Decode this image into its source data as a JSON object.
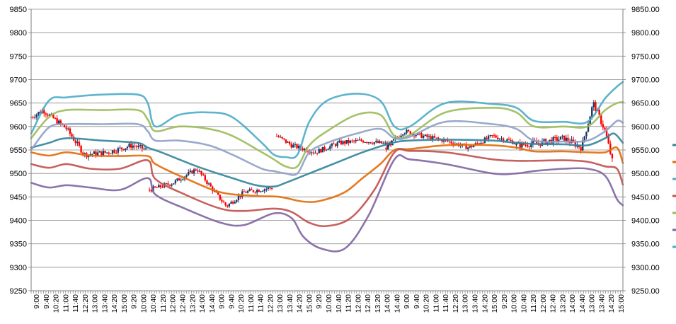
{
  "chart_data": {
    "type": "line",
    "title": "",
    "xlabel": "",
    "ylabel": "",
    "ylim": [
      9250,
      9850
    ],
    "grid": true,
    "legend_position": "right",
    "left_axis_ticks": [
      "9250",
      "9300",
      "9350",
      "9400",
      "9450",
      "9500",
      "9550",
      "9600",
      "9650",
      "9700",
      "9750",
      "9800",
      "9850"
    ],
    "right_axis_ticks": [
      "9250.00",
      "9300.00",
      "9350.00",
      "9400.00",
      "9450.00",
      "9500.00",
      "9550.00",
      "9600.00",
      "9650.00",
      "9700.00",
      "9750.00",
      "9800.00",
      "9850.00"
    ],
    "x_tick_labels": [
      "9:00",
      "9:40",
      "10:20",
      "11:00",
      "11:40",
      "12:20",
      "13:00",
      "13:40",
      "14:20",
      "15:00",
      "9:20",
      "10:00",
      "10:40",
      "11:20",
      "12:00",
      "12:40",
      "13:20",
      "14:00",
      "14:40",
      "9:00",
      "9:40",
      "10:20",
      "11:00",
      "11:40",
      "12:20",
      "13:00",
      "13:40",
      "14:20",
      "15:00",
      "9:20",
      "10:00",
      "10:40",
      "11:20",
      "12:00",
      "12:40",
      "13:20",
      "14:00",
      "14:40",
      "9:00",
      "9:40",
      "10:20",
      "11:00",
      "11:40",
      "12:20",
      "13:00",
      "13:40",
      "14:20",
      "15:00",
      "9:20",
      "10:00",
      "10:40",
      "11:20",
      "12:00",
      "12:40",
      "13:20",
      "14:00",
      "14:40",
      "13:00",
      "13:40",
      "14:20",
      "15:00"
    ],
    "x_domain": [
      0,
      1
    ],
    "series": [
      {
        "color": "#31849B",
        "points": [
          [
            0,
            9555
          ],
          [
            0.03,
            9565
          ],
          [
            0.06,
            9575
          ],
          [
            0.12,
            9570
          ],
          [
            0.18,
            9565
          ],
          [
            0.197,
            9555
          ],
          [
            0.22,
            9545
          ],
          [
            0.28,
            9515
          ],
          [
            0.34,
            9490
          ],
          [
            0.38,
            9475
          ],
          [
            0.41,
            9472
          ],
          [
            0.43,
            9480
          ],
          [
            0.47,
            9500
          ],
          [
            0.52,
            9525
          ],
          [
            0.56,
            9545
          ],
          [
            0.61,
            9565
          ],
          [
            0.64,
            9570
          ],
          [
            0.7,
            9572
          ],
          [
            0.78,
            9570
          ],
          [
            0.82,
            9565
          ],
          [
            0.85,
            9563
          ],
          [
            0.9,
            9562
          ],
          [
            0.94,
            9560
          ],
          [
            0.97,
            9575
          ],
          [
            0.985,
            9585
          ],
          [
            1.0,
            9565
          ]
        ]
      },
      {
        "color": "#E36C09",
        "points": [
          [
            0,
            9545
          ],
          [
            0.03,
            9538
          ],
          [
            0.06,
            9545
          ],
          [
            0.1,
            9538
          ],
          [
            0.15,
            9537
          ],
          [
            0.197,
            9537
          ],
          [
            0.21,
            9520
          ],
          [
            0.26,
            9490
          ],
          [
            0.32,
            9460
          ],
          [
            0.38,
            9452
          ],
          [
            0.42,
            9450
          ],
          [
            0.46,
            9440
          ],
          [
            0.49,
            9442
          ],
          [
            0.53,
            9460
          ],
          [
            0.56,
            9490
          ],
          [
            0.59,
            9520
          ],
          [
            0.614,
            9550
          ],
          [
            0.64,
            9552
          ],
          [
            0.7,
            9560
          ],
          [
            0.78,
            9560
          ],
          [
            0.82,
            9555
          ],
          [
            0.85,
            9547
          ],
          [
            0.9,
            9547
          ],
          [
            0.94,
            9545
          ],
          [
            0.97,
            9545
          ],
          [
            0.99,
            9555
          ],
          [
            1.0,
            9522
          ]
        ]
      },
      {
        "color": "#C0504D",
        "points": [
          [
            0,
            9520
          ],
          [
            0.03,
            9512
          ],
          [
            0.06,
            9520
          ],
          [
            0.1,
            9510
          ],
          [
            0.15,
            9510
          ],
          [
            0.197,
            9528
          ],
          [
            0.21,
            9488
          ],
          [
            0.26,
            9455
          ],
          [
            0.32,
            9425
          ],
          [
            0.36,
            9420
          ],
          [
            0.41,
            9425
          ],
          [
            0.44,
            9418
          ],
          [
            0.47,
            9395
          ],
          [
            0.5,
            9388
          ],
          [
            0.54,
            9405
          ],
          [
            0.58,
            9465
          ],
          [
            0.614,
            9545
          ],
          [
            0.64,
            9548
          ],
          [
            0.7,
            9545
          ],
          [
            0.78,
            9530
          ],
          [
            0.82,
            9527
          ],
          [
            0.85,
            9527
          ],
          [
            0.9,
            9528
          ],
          [
            0.94,
            9525
          ],
          [
            0.97,
            9515
          ],
          [
            0.99,
            9510
          ],
          [
            1.0,
            9476
          ]
        ]
      },
      {
        "color": "#9BBB59",
        "points": [
          [
            0,
            9575
          ],
          [
            0.03,
            9620
          ],
          [
            0.06,
            9635
          ],
          [
            0.12,
            9635
          ],
          [
            0.18,
            9635
          ],
          [
            0.197,
            9615
          ],
          [
            0.21,
            9590
          ],
          [
            0.25,
            9600
          ],
          [
            0.3,
            9595
          ],
          [
            0.34,
            9580
          ],
          [
            0.39,
            9545
          ],
          [
            0.41,
            9530
          ],
          [
            0.43,
            9515
          ],
          [
            0.45,
            9515
          ],
          [
            0.47,
            9560
          ],
          [
            0.5,
            9590
          ],
          [
            0.55,
            9625
          ],
          [
            0.59,
            9625
          ],
          [
            0.614,
            9580
          ],
          [
            0.64,
            9582
          ],
          [
            0.7,
            9630
          ],
          [
            0.78,
            9640
          ],
          [
            0.82,
            9630
          ],
          [
            0.85,
            9600
          ],
          [
            0.9,
            9600
          ],
          [
            0.94,
            9600
          ],
          [
            0.97,
            9635
          ],
          [
            0.99,
            9650
          ],
          [
            1.0,
            9652
          ]
        ]
      },
      {
        "color": "#8064A2",
        "points": [
          [
            0,
            9480
          ],
          [
            0.03,
            9470
          ],
          [
            0.06,
            9475
          ],
          [
            0.1,
            9470
          ],
          [
            0.15,
            9465
          ],
          [
            0.197,
            9490
          ],
          [
            0.21,
            9455
          ],
          [
            0.26,
            9425
          ],
          [
            0.32,
            9395
          ],
          [
            0.36,
            9390
          ],
          [
            0.41,
            9415
          ],
          [
            0.44,
            9405
          ],
          [
            0.46,
            9365
          ],
          [
            0.49,
            9340
          ],
          [
            0.53,
            9340
          ],
          [
            0.57,
            9410
          ],
          [
            0.614,
            9530
          ],
          [
            0.64,
            9530
          ],
          [
            0.7,
            9520
          ],
          [
            0.78,
            9500
          ],
          [
            0.82,
            9500
          ],
          [
            0.85,
            9505
          ],
          [
            0.9,
            9510
          ],
          [
            0.94,
            9510
          ],
          [
            0.97,
            9495
          ],
          [
            0.99,
            9445
          ],
          [
            1.0,
            9432
          ]
        ]
      },
      {
        "color": "#4BACC6",
        "points": [
          [
            0,
            9585
          ],
          [
            0.03,
            9655
          ],
          [
            0.06,
            9662
          ],
          [
            0.12,
            9668
          ],
          [
            0.18,
            9668
          ],
          [
            0.197,
            9650
          ],
          [
            0.21,
            9600
          ],
          [
            0.25,
            9625
          ],
          [
            0.3,
            9630
          ],
          [
            0.34,
            9620
          ],
          [
            0.39,
            9565
          ],
          [
            0.41,
            9540
          ],
          [
            0.43,
            9535
          ],
          [
            0.45,
            9540
          ],
          [
            0.47,
            9610
          ],
          [
            0.5,
            9655
          ],
          [
            0.55,
            9670
          ],
          [
            0.59,
            9655
          ],
          [
            0.614,
            9600
          ],
          [
            0.64,
            9600
          ],
          [
            0.7,
            9650
          ],
          [
            0.78,
            9648
          ],
          [
            0.82,
            9640
          ],
          [
            0.85,
            9612
          ],
          [
            0.9,
            9610
          ],
          [
            0.94,
            9610
          ],
          [
            0.97,
            9660
          ],
          [
            0.99,
            9685
          ],
          [
            1.0,
            9695
          ]
        ]
      },
      {
        "color": "#8EA0C8",
        "points": [
          [
            0,
            9550
          ],
          [
            0.03,
            9598
          ],
          [
            0.06,
            9605
          ],
          [
            0.12,
            9605
          ],
          [
            0.18,
            9605
          ],
          [
            0.197,
            9590
          ],
          [
            0.21,
            9570
          ],
          [
            0.25,
            9570
          ],
          [
            0.3,
            9560
          ],
          [
            0.34,
            9540
          ],
          [
            0.39,
            9510
          ],
          [
            0.41,
            9505
          ],
          [
            0.43,
            9500
          ],
          [
            0.45,
            9500
          ],
          [
            0.47,
            9545
          ],
          [
            0.5,
            9565
          ],
          [
            0.55,
            9585
          ],
          [
            0.59,
            9595
          ],
          [
            0.614,
            9575
          ],
          [
            0.64,
            9578
          ],
          [
            0.7,
            9610
          ],
          [
            0.78,
            9605
          ],
          [
            0.82,
            9595
          ],
          [
            0.85,
            9570
          ],
          [
            0.9,
            9568
          ],
          [
            0.94,
            9570
          ],
          [
            0.97,
            9590
          ],
          [
            0.99,
            9612
          ],
          [
            1.0,
            9608
          ]
        ]
      }
    ],
    "candles": {
      "up_color": "#1F3864",
      "down_color": "#FF0000",
      "segments": [
        {
          "x_range": [
            0.0,
            0.197
          ],
          "anchors": [
            [
              0,
              9620
            ],
            [
              0.02,
              9635
            ],
            [
              0.06,
              9595
            ],
            [
              0.09,
              9540
            ],
            [
              0.13,
              9545
            ],
            [
              0.17,
              9560
            ],
            [
              0.197,
              9550
            ]
          ],
          "volatility": 12
        },
        {
          "x_range": [
            0.2,
            0.41
          ],
          "anchors": [
            [
              0.2,
              9465
            ],
            [
              0.24,
              9480
            ],
            [
              0.28,
              9510
            ],
            [
              0.31,
              9460
            ],
            [
              0.33,
              9430
            ],
            [
              0.36,
              9460
            ],
            [
              0.41,
              9470
            ]
          ],
          "volatility": 10
        },
        {
          "x_range": [
            0.415,
            0.614
          ],
          "anchors": [
            [
              0.415,
              9580
            ],
            [
              0.44,
              9560
            ],
            [
              0.48,
              9545
            ],
            [
              0.52,
              9565
            ],
            [
              0.56,
              9570
            ],
            [
              0.614,
              9560
            ]
          ],
          "volatility": 10
        },
        {
          "x_range": [
            0.6,
            0.82
          ],
          "anchors": [
            [
              0.6,
              9555
            ],
            [
              0.63,
              9590
            ],
            [
              0.66,
              9580
            ],
            [
              0.7,
              9570
            ],
            [
              0.74,
              9555
            ],
            [
              0.78,
              9580
            ],
            [
              0.82,
              9565
            ]
          ],
          "volatility": 10
        },
        {
          "x_range": [
            0.82,
            0.985
          ],
          "anchors": [
            [
              0.82,
              9560
            ],
            [
              0.86,
              9565
            ],
            [
              0.9,
              9575
            ],
            [
              0.93,
              9555
            ],
            [
              0.95,
              9650
            ],
            [
              0.97,
              9590
            ],
            [
              0.985,
              9510
            ]
          ],
          "volatility": 14
        }
      ]
    },
    "legend_colors": [
      "#31849B",
      "#E36C09",
      "#4BACC6",
      "#C0504D",
      "#9BBB59",
      "#8064A2",
      "#4BACC6"
    ]
  }
}
